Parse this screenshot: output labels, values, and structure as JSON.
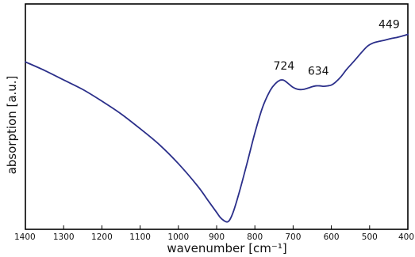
{
  "chart_data": {
    "type": "line",
    "title": "",
    "xlabel": "wavenumber [cm⁻¹]",
    "ylabel": "absorption [a.u.]",
    "xlim": [
      1400,
      400
    ],
    "x_reversed": true,
    "y_ticks_shown": false,
    "grid": false,
    "legend": "none",
    "x_ticks": [
      1400,
      1300,
      1200,
      1100,
      1000,
      900,
      800,
      700,
      600,
      500,
      400
    ],
    "x_tick_labels": [
      "1400",
      "1300",
      "1200",
      "1100",
      "1000",
      "900",
      "800",
      "700",
      "600",
      "500",
      "400"
    ],
    "line_color": "#2b2f8a",
    "series": [
      {
        "x": [
          1400,
          1350,
          1300,
          1250,
          1200,
          1150,
          1100,
          1050,
          1000,
          950,
          920,
          900,
          890,
          880,
          872,
          865,
          855,
          840,
          820,
          800,
          780,
          760,
          745,
          735,
          728,
          722,
          712,
          700,
          688,
          675,
          660,
          650,
          640,
          630,
          620,
          610,
          600,
          590,
          575,
          560,
          540,
          520,
          505,
          490,
          475,
          460,
          445,
          430,
          415,
          400
        ],
        "y": [
          0.775,
          0.735,
          0.69,
          0.645,
          0.59,
          0.53,
          0.46,
          0.385,
          0.295,
          0.19,
          0.115,
          0.065,
          0.04,
          0.025,
          0.02,
          0.032,
          0.075,
          0.165,
          0.3,
          0.44,
          0.56,
          0.64,
          0.675,
          0.688,
          0.69,
          0.686,
          0.672,
          0.655,
          0.646,
          0.645,
          0.652,
          0.658,
          0.662,
          0.662,
          0.66,
          0.662,
          0.666,
          0.678,
          0.705,
          0.74,
          0.78,
          0.822,
          0.85,
          0.865,
          0.872,
          0.878,
          0.885,
          0.89,
          0.897,
          0.905
        ]
      }
    ],
    "annotations": [
      {
        "label": "724",
        "x": 724
      },
      {
        "label": "634",
        "x": 634
      },
      {
        "label": "449",
        "x": 449
      }
    ]
  }
}
